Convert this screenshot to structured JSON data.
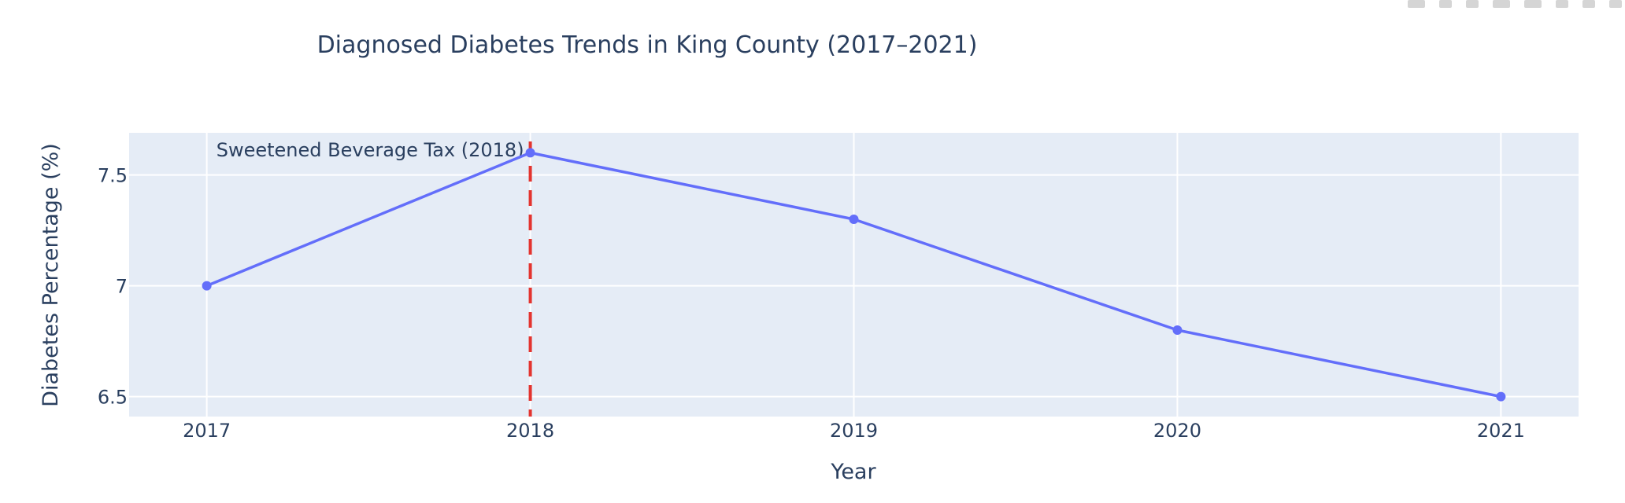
{
  "chart_data": {
    "type": "line",
    "title": "Diagnosed Diabetes Trends in King County (2017–2021)",
    "xlabel": "Year",
    "ylabel": "Diabetes Percentage (%)",
    "x": [
      2017,
      2018,
      2019,
      2020,
      2021
    ],
    "series": [
      {
        "values": [
          7.0,
          7.6,
          7.3,
          6.8,
          6.5
        ]
      }
    ],
    "xlim": [
      2016.76,
      2021.24
    ],
    "ylim": [
      6.41,
      7.69
    ],
    "yticks": [
      6.5,
      7,
      7.5
    ],
    "ytick_labels": [
      "6.5",
      "7",
      "7.5"
    ],
    "xticks": [
      2017,
      2018,
      2019,
      2020,
      2021
    ],
    "xtick_labels": [
      "2017",
      "2018",
      "2019",
      "2020",
      "2021"
    ],
    "grid": true,
    "annotation": {
      "text": "Sweetened Beverage Tax (2018)",
      "x": 2018
    },
    "colors": {
      "line": "#636efa",
      "plot_bg": "#e5ecf6",
      "grid": "#ffffff",
      "vline": "#e3342f",
      "text": "#2a3f5f"
    }
  }
}
